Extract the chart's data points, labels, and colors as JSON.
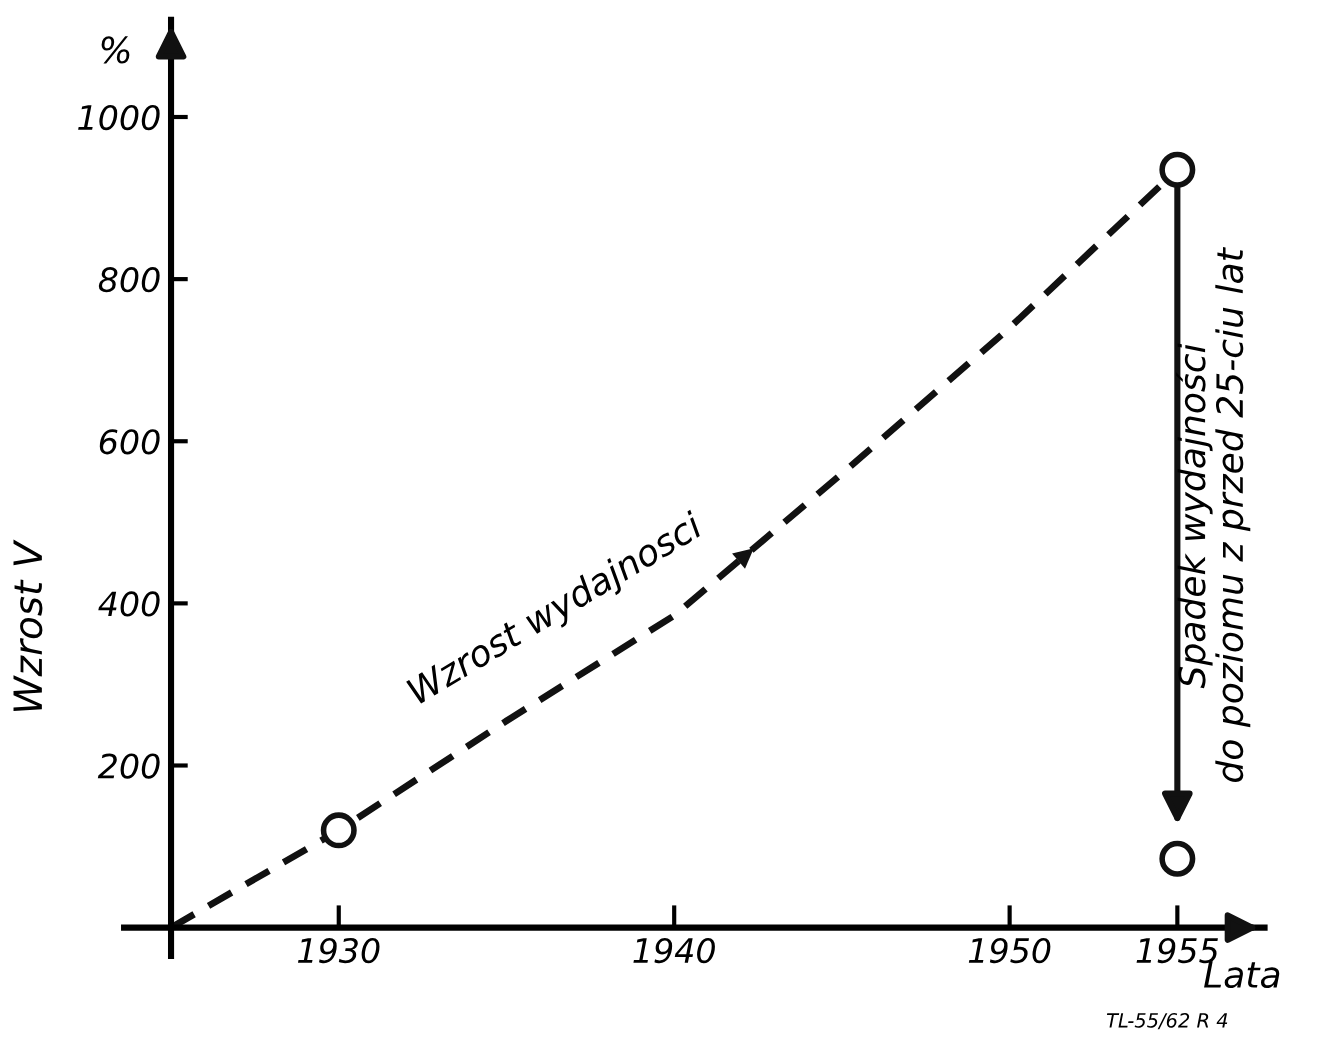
{
  "chart_data": {
    "type": "line",
    "ylabel": "Wzrost V",
    "xlabel": "Lata",
    "xlim": [
      1923.6,
      1957.6
    ],
    "ylim": [
      -35,
      1120
    ],
    "xticks": [
      1930,
      1940,
      1950,
      1955
    ],
    "yticks": [
      200,
      400,
      600,
      800,
      1000
    ],
    "grid": false,
    "legend": false,
    "series": [
      {
        "color": "#111111",
        "line_style": "dashed",
        "marker": "none",
        "x": [
          1925,
          1930,
          1935,
          1940,
          1945,
          1950,
          1955
        ],
        "values": [
          0,
          120,
          255,
          385,
          560,
          740,
          935
        ]
      },
      {
        "type": "scatter",
        "color": "#111111",
        "marker": "circle",
        "x": [
          1930,
          1955,
          1955
        ],
        "values": [
          120,
          935,
          85
        ]
      }
    ],
    "annotations": [
      "Wzrost wydajnosci",
      "Spadek wydajności\ndo poziomu z przed 25-ciu lat",
      "%",
      "TL-55/62 R 4"
    ]
  }
}
